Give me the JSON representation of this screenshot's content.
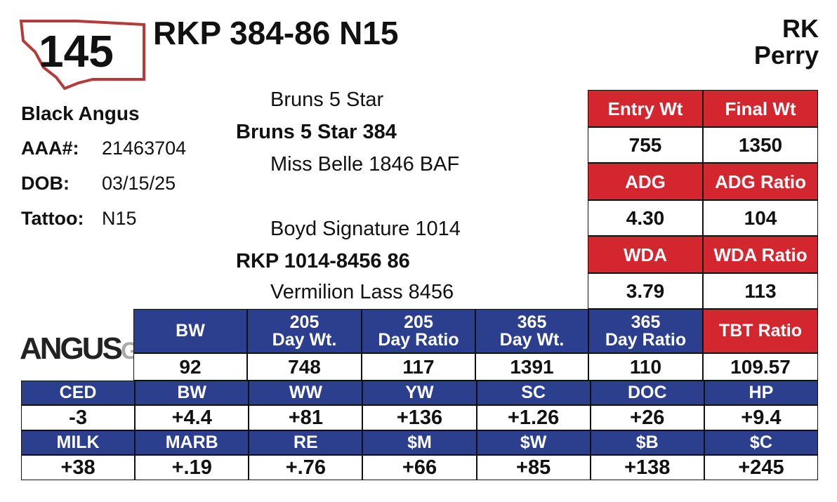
{
  "lot": "145",
  "title": "RKP 384-86 N15",
  "consignor": [
    "RK",
    "Perry"
  ],
  "breed": "Black Angus",
  "info": [
    {
      "label": "AAA#:",
      "value": "21463704"
    },
    {
      "label": "DOB:",
      "value": "03/15/25"
    },
    {
      "label": "Tattoo:",
      "value": "N15"
    }
  ],
  "pedigree": {
    "sire_sire": "Bruns 5 Star",
    "sire": "Bruns 5 Star 384",
    "sire_dam": "Miss Belle 1846 BAF",
    "dam_sire": "Boyd Signature 1014",
    "dam": "RKP 1014-8456 86",
    "dam_dam": "Vermilion Lass 8456"
  },
  "performance": {
    "headers": [
      [
        "Entry Wt",
        "Final Wt"
      ],
      [
        "ADG",
        "ADG Ratio"
      ],
      [
        "WDA",
        "WDA Ratio"
      ]
    ],
    "values": [
      [
        "755",
        "1350"
      ],
      [
        "4.30",
        "104"
      ],
      [
        "3.79",
        "113"
      ]
    ]
  },
  "logo": [
    "ANGUS",
    "GS"
  ],
  "weights": {
    "headers": [
      [
        "BW"
      ],
      [
        "205",
        "Day Wt."
      ],
      [
        "205",
        "Day Ratio"
      ],
      [
        "365",
        "Day Wt."
      ],
      [
        "365",
        "Day Ratio"
      ],
      [
        "TBT Ratio"
      ]
    ],
    "values": [
      "92",
      "748",
      "117",
      "1391",
      "110",
      "109.57"
    ]
  },
  "epds": [
    {
      "headers": [
        "CED",
        "BW",
        "WW",
        "YW",
        "SC",
        "DOC",
        "HP"
      ],
      "values": [
        "-3",
        "+4.4",
        "+81",
        "+136",
        "+1.26",
        "+26",
        "+9.4"
      ]
    },
    {
      "headers": [
        "MILK",
        "MARB",
        "RE",
        "$M",
        "$W",
        "$B",
        "$C"
      ],
      "values": [
        "+38",
        "+.19",
        "+.76",
        "+66",
        "+85",
        "+138",
        "+245"
      ]
    }
  ]
}
